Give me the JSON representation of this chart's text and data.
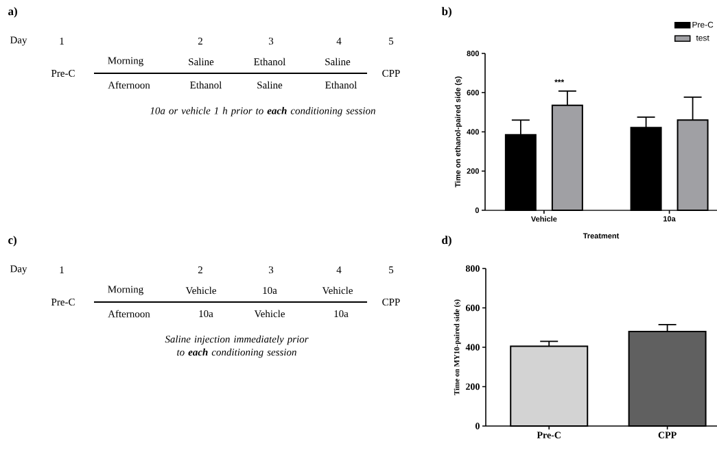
{
  "chart_data": [
    {
      "type": "other",
      "title": "a)",
      "annotations": [
        "Day",
        "1",
        "2",
        "3",
        "4",
        "5",
        "Pre-C",
        "Morning",
        "Saline",
        "Ethanol",
        "Saline",
        "Afternoon",
        "Ethanol",
        "Saline",
        "Ethanol",
        "CPP",
        "10a or vehicle 1 h prior to **each** conditioning session"
      ]
    },
    {
      "type": "bar",
      "title": "b)",
      "categories": [
        "Vehicle",
        "10a"
      ],
      "xlabel": "Treatment",
      "ylabel": "Time on ethanol-paired side (s)",
      "ylim": [
        0,
        800
      ],
      "yticks": [
        0,
        200,
        400,
        600,
        800
      ],
      "legend": "top right",
      "series": [
        {
          "name": "Pre-C",
          "color": "#000000",
          "values": [
            385,
            422
          ],
          "errors": [
            75,
            53
          ]
        },
        {
          "name": "test",
          "color": "#a0a0a4",
          "values": [
            535,
            460
          ],
          "errors": [
            73,
            117
          ]
        }
      ],
      "annotations": [
        "***"
      ]
    },
    {
      "type": "other",
      "title": "c)",
      "annotations": [
        "Day",
        "1",
        "2",
        "3",
        "4",
        "5",
        "Pre-C",
        "Morning",
        "Vehicle",
        "10a",
        "Vehicle",
        "Afternoon",
        "10a",
        "Vehicle",
        "10a",
        "CPP",
        "Saline injection immediately prior to **each** conditioning session"
      ]
    },
    {
      "type": "bar",
      "title": "d)",
      "categories": [
        "Pre-C",
        "CPP"
      ],
      "ylabel": "Time on MY10-paired side (s)",
      "ylim": [
        0,
        800
      ],
      "yticks": [
        0,
        200,
        400,
        600,
        800
      ],
      "values": [
        405,
        480
      ],
      "colors": [
        "#d3d3d3",
        "#606060"
      ],
      "errors": [
        25,
        35
      ]
    }
  ]
}
